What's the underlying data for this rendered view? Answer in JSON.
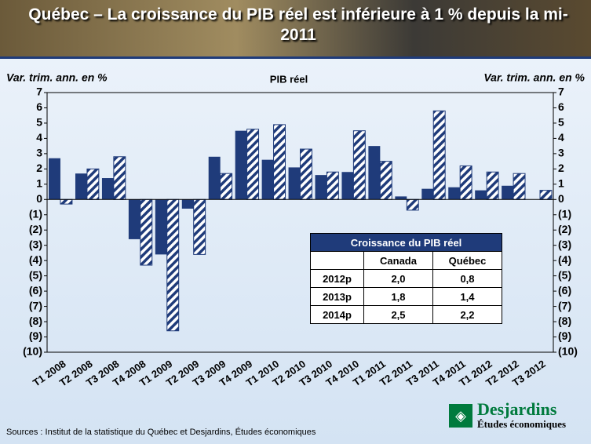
{
  "chart_data": {
    "type": "bar",
    "title": "Québec – La croissance du PIB réel est inférieure à 1 % depuis la mi-2011",
    "subtitle": "PIB réel",
    "ylabel": "Var. trim. ann. en %",
    "y2label": "Var. trim. ann. en %",
    "categories": [
      "T1 2008",
      "T2 2008",
      "T3 2008",
      "T4 2008",
      "T1 2009",
      "T2 2009",
      "T3 2009",
      "T4 2009",
      "T1 2010",
      "T2 2010",
      "T3 2010",
      "T4 2010",
      "T1 2011",
      "T2 2011",
      "T3 2011",
      "T4 2011",
      "T1 2012",
      "T2 2012",
      "T3 2012"
    ],
    "series": [
      {
        "color": "#1f3b7a",
        "values": [
          2.7,
          1.7,
          1.4,
          -2.6,
          -3.6,
          -0.6,
          2.8,
          4.5,
          2.6,
          2.1,
          1.6,
          1.8,
          3.5,
          0.2,
          0.7,
          0.8,
          0.6,
          0.9,
          null
        ]
      },
      {
        "color": "#1f3b7a",
        "hatch": true,
        "values": [
          -0.3,
          2.0,
          2.8,
          -4.3,
          -8.6,
          -3.6,
          1.7,
          4.6,
          4.9,
          3.3,
          1.8,
          4.5,
          2.5,
          -0.7,
          5.8,
          2.2,
          1.8,
          1.7,
          0.6
        ]
      }
    ],
    "ylim": [
      -10,
      7
    ],
    "yticks": [
      {
        "value": -10,
        "label": "(10)"
      },
      {
        "value": -9,
        "label": "(9)"
      },
      {
        "value": -8,
        "label": "(8)"
      },
      {
        "value": -7,
        "label": "(7)"
      },
      {
        "value": -6,
        "label": "(6)"
      },
      {
        "value": -5,
        "label": "(5)"
      },
      {
        "value": -4,
        "label": "(4)"
      },
      {
        "value": -3,
        "label": "(3)"
      },
      {
        "value": -2,
        "label": "(2)"
      },
      {
        "value": -1,
        "label": "(1)"
      },
      0,
      1,
      2,
      3,
      4,
      5,
      6,
      7
    ],
    "y2lim": [
      -10,
      7
    ],
    "y2ticks": [
      {
        "value": -10,
        "label": "(10)"
      },
      {
        "value": -9,
        "label": "(9)"
      },
      {
        "value": -8,
        "label": "(8)"
      },
      {
        "value": -7,
        "label": "(7)"
      },
      {
        "value": -6,
        "label": "(6)"
      },
      {
        "value": -5,
        "label": "(5)"
      },
      {
        "value": -4,
        "label": "(4)"
      },
      {
        "value": -3,
        "label": "(3)"
      },
      {
        "value": -2,
        "label": "(2)"
      },
      {
        "value": -1,
        "label": "(1)"
      },
      0,
      1,
      2,
      3,
      4,
      5,
      6,
      7
    ]
  },
  "table": {
    "title": "Croissance du PIB réel",
    "columns": [
      "Canada",
      "Québec"
    ],
    "rows": [
      [
        "2012p",
        "2,0",
        "0,8"
      ],
      [
        "2013p",
        "1,8",
        "1,4"
      ],
      [
        "2014p",
        "2,5",
        "2,2"
      ]
    ]
  },
  "source": "Sources : Institut de la statistique du Québec et Desjardins, Études économiques",
  "logo": {
    "name": "Desjardins",
    "tagline": "Études économiques"
  }
}
